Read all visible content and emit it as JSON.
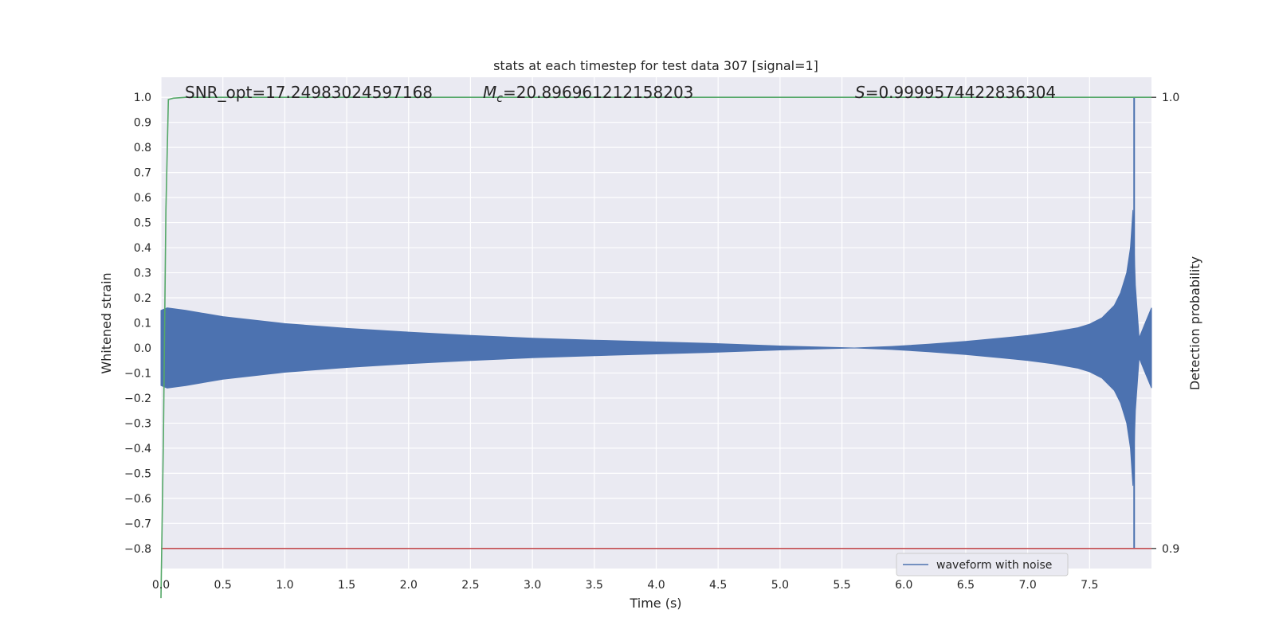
{
  "chart_data": {
    "type": "line",
    "title": "stats at each timestep for test data 307 [signal=1]",
    "xlabel": "Time (s)",
    "ylabel": "Whitened strain",
    "y2label": "Detection probability",
    "xlim": [
      0.0,
      8.0
    ],
    "ylim": [
      -0.88,
      1.08
    ],
    "y2lim": [
      0.9,
      1.0
    ],
    "xticks": [
      "0.0",
      "0.5",
      "1.0",
      "1.5",
      "2.0",
      "2.5",
      "3.0",
      "3.5",
      "4.0",
      "4.5",
      "5.0",
      "5.5",
      "6.0",
      "6.5",
      "7.0",
      "7.5"
    ],
    "xtick_values": [
      0.0,
      0.5,
      1.0,
      1.5,
      2.0,
      2.5,
      3.0,
      3.5,
      4.0,
      4.5,
      5.0,
      5.5,
      6.0,
      6.5,
      7.0,
      7.5
    ],
    "yticks": [
      "1.0",
      "0.9",
      "0.8",
      "0.7",
      "0.6",
      "0.5",
      "0.4",
      "0.3",
      "0.2",
      "0.1",
      "0.0",
      "−0.1",
      "−0.2",
      "−0.3",
      "−0.4",
      "−0.5",
      "−0.6",
      "−0.7",
      "−0.8"
    ],
    "ytick_values": [
      1.0,
      0.9,
      0.8,
      0.7,
      0.6,
      0.5,
      0.4,
      0.3,
      0.2,
      0.1,
      0.0,
      -0.1,
      -0.2,
      -0.3,
      -0.4,
      -0.5,
      -0.6,
      -0.7,
      -0.8
    ],
    "y2ticks": [
      "1.0",
      "0.9"
    ],
    "y2tick_values": [
      1.0,
      0.9
    ],
    "grid": true,
    "legend": {
      "entries": [
        "waveform with noise"
      ],
      "placement": "lower-right"
    },
    "annotations": {
      "snr": "SNR_opt=17.24983024597168",
      "mc_symbol": "M",
      "mc_sub": "c",
      "mc_value": "=20.896961212158203",
      "s_symbol": "S",
      "s_value": "=0.9999574422836304"
    },
    "series": [
      {
        "name": "waveform with noise",
        "color": "#4c72b0",
        "kind": "envelope",
        "t_envelope": [
          0.0,
          0.05,
          0.2,
          0.5,
          1.0,
          1.5,
          2.0,
          2.5,
          3.0,
          3.5,
          4.0,
          4.5,
          5.0,
          5.3,
          5.6,
          5.9,
          6.2,
          6.5,
          6.8,
          7.0,
          7.2,
          7.4,
          7.5,
          7.6,
          7.7,
          7.75,
          7.8,
          7.83,
          7.85,
          7.87,
          7.9,
          7.95,
          8.0
        ],
        "amplitude": [
          0.15,
          0.16,
          0.15,
          0.125,
          0.097,
          0.078,
          0.063,
          0.05,
          0.039,
          0.031,
          0.024,
          0.017,
          0.008,
          0.004,
          0.0,
          0.006,
          0.015,
          0.026,
          0.04,
          0.05,
          0.063,
          0.08,
          0.095,
          0.12,
          0.17,
          0.22,
          0.3,
          0.4,
          0.55,
          0.25,
          0.04,
          0.1,
          0.16
        ],
        "spike": {
          "t": 7.86,
          "y": [
            1.0,
            -0.8
          ]
        }
      },
      {
        "name": "",
        "color": "#55a868",
        "kind": "line",
        "axis": "y2",
        "x": [
          0.0,
          0.02,
          0.04,
          0.06,
          0.1,
          0.2,
          1.0,
          4.0,
          7.0,
          7.85,
          7.9,
          8.0
        ],
        "y": [
          0.889,
          0.925,
          0.975,
          0.9995,
          0.9998,
          1.0,
          1.0,
          1.0,
          1.0,
          1.0,
          1.0,
          1.0
        ]
      },
      {
        "name": "",
        "color": "#c44e52",
        "kind": "line",
        "axis": "y2",
        "x": [
          0.0,
          8.0
        ],
        "y": [
          0.9,
          0.9
        ]
      }
    ]
  }
}
